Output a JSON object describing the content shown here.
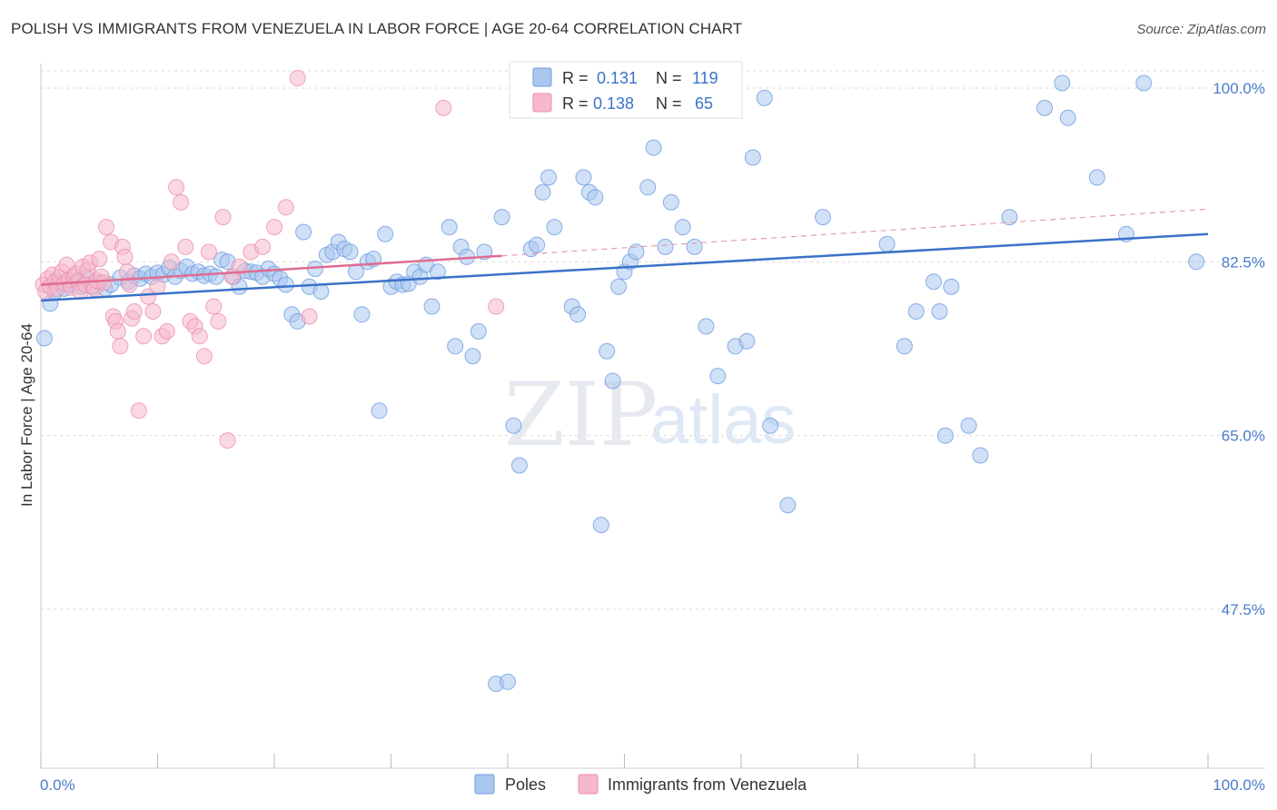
{
  "header": {
    "title": "POLISH VS IMMIGRANTS FROM VENEZUELA IN LABOR FORCE | AGE 20-64 CORRELATION CHART",
    "source": "Source: ZipAtlas.com"
  },
  "watermark": {
    "zip": "ZIP",
    "atlas": "atlas"
  },
  "stats": {
    "r_label": "R =",
    "n_label": "N =",
    "rows": [
      {
        "r": "0.131",
        "n": "119",
        "color": "#a9c7ee"
      },
      {
        "r": "0.138",
        "n": "65",
        "color": "#f6b8cb"
      }
    ]
  },
  "legend": {
    "items": [
      {
        "label": "Poles",
        "color": "#a9c7ee"
      },
      {
        "label": "Immigrants from Venezuela",
        "color": "#f6b8cb"
      }
    ]
  },
  "chart_data": {
    "type": "scatter",
    "title": "POLISH VS IMMIGRANTS FROM VENEZUELA IN LABOR FORCE | AGE 20-64 CORRELATION CHART",
    "ylabel": "In Labor Force | Age 20-64",
    "xlabel": "",
    "x_tick_labels": [
      "0.0%",
      "100.0%"
    ],
    "y_tick_labels": [
      "100.0%",
      "82.5%",
      "65.0%",
      "47.5%"
    ],
    "y_ticks": [
      100,
      82.5,
      65,
      47.5
    ],
    "xlim": [
      0,
      100
    ],
    "ylim": [
      28,
      102.5
    ],
    "grid": true,
    "legend_position": "bottom-center",
    "series": [
      {
        "name": "Poles",
        "color": "#6d9ee0",
        "fill": "#a9c7ee",
        "trend": [
          [
            0,
            78.6
          ],
          [
            100,
            85.3
          ]
        ],
        "points": [
          [
            0.3,
            74.8
          ],
          [
            0.8,
            78.3
          ],
          [
            1.2,
            79.5
          ],
          [
            1.6,
            80.5
          ],
          [
            2.0,
            79.8
          ],
          [
            2.5,
            80.2
          ],
          [
            3.0,
            80.6
          ],
          [
            3.5,
            80.0
          ],
          [
            4.0,
            80.8
          ],
          [
            4.5,
            80.0
          ],
          [
            5.0,
            80.4
          ],
          [
            5.5,
            79.8
          ],
          [
            6.0,
            80.2
          ],
          [
            6.8,
            80.9
          ],
          [
            7.5,
            80.5
          ],
          [
            8.0,
            81.1
          ],
          [
            8.5,
            80.8
          ],
          [
            9.0,
            81.3
          ],
          [
            9.5,
            81.0
          ],
          [
            10.0,
            81.4
          ],
          [
            10.5,
            81.2
          ],
          [
            11.0,
            81.9
          ],
          [
            11.5,
            81.0
          ],
          [
            12.0,
            81.6
          ],
          [
            12.5,
            82.0
          ],
          [
            13.0,
            81.3
          ],
          [
            13.5,
            81.5
          ],
          [
            14.0,
            81.1
          ],
          [
            14.5,
            81.3
          ],
          [
            15.0,
            81.0
          ],
          [
            15.5,
            82.7
          ],
          [
            16.0,
            82.5
          ],
          [
            16.5,
            81.0
          ],
          [
            17.0,
            80.0
          ],
          [
            17.5,
            81.6
          ],
          [
            18.0,
            81.5
          ],
          [
            18.5,
            81.4
          ],
          [
            19.0,
            81.0
          ],
          [
            19.5,
            81.8
          ],
          [
            20.0,
            81.3
          ],
          [
            20.5,
            80.8
          ],
          [
            21.0,
            80.2
          ],
          [
            21.5,
            77.2
          ],
          [
            22.0,
            76.5
          ],
          [
            22.5,
            85.5
          ],
          [
            23.0,
            80.0
          ],
          [
            23.5,
            81.8
          ],
          [
            24.0,
            79.5
          ],
          [
            24.5,
            83.2
          ],
          [
            25.0,
            83.5
          ],
          [
            25.5,
            84.5
          ],
          [
            26.0,
            83.8
          ],
          [
            26.5,
            83.5
          ],
          [
            27.0,
            81.5
          ],
          [
            27.5,
            77.2
          ],
          [
            28.0,
            82.5
          ],
          [
            28.5,
            82.8
          ],
          [
            29.0,
            67.5
          ],
          [
            29.5,
            85.3
          ],
          [
            30.0,
            80.0
          ],
          [
            30.5,
            80.5
          ],
          [
            31.0,
            80.2
          ],
          [
            31.5,
            80.3
          ],
          [
            32.0,
            81.5
          ],
          [
            32.5,
            81.0
          ],
          [
            33.0,
            82.2
          ],
          [
            33.5,
            78.0
          ],
          [
            34.0,
            81.5
          ],
          [
            35.0,
            86.0
          ],
          [
            35.5,
            74.0
          ],
          [
            36.0,
            84.0
          ],
          [
            36.5,
            83.0
          ],
          [
            37.0,
            73.0
          ],
          [
            37.5,
            75.5
          ],
          [
            38.0,
            83.5
          ],
          [
            39.0,
            40.0
          ],
          [
            39.5,
            87.0
          ],
          [
            40.0,
            40.2
          ],
          [
            40.5,
            66.0
          ],
          [
            41.0,
            62.0
          ],
          [
            42.0,
            83.8
          ],
          [
            42.5,
            84.2
          ],
          [
            43.0,
            89.5
          ],
          [
            43.5,
            91.0
          ],
          [
            44.0,
            86.0
          ],
          [
            45.5,
            78.0
          ],
          [
            46.0,
            77.2
          ],
          [
            46.5,
            91.0
          ],
          [
            47.0,
            89.5
          ],
          [
            47.5,
            89.0
          ],
          [
            48.0,
            56.0
          ],
          [
            48.5,
            73.5
          ],
          [
            49.0,
            70.5
          ],
          [
            49.5,
            80.0
          ],
          [
            50.0,
            81.5
          ],
          [
            50.5,
            82.5
          ],
          [
            51.0,
            83.5
          ],
          [
            52.0,
            90.0
          ],
          [
            52.5,
            94.0
          ],
          [
            53.5,
            84.0
          ],
          [
            54.0,
            88.5
          ],
          [
            55.0,
            86.0
          ],
          [
            56.0,
            84.0
          ],
          [
            57.0,
            76.0
          ],
          [
            58.0,
            71.0
          ],
          [
            59.5,
            74.0
          ],
          [
            60.5,
            74.5
          ],
          [
            61.0,
            93.0
          ],
          [
            62.0,
            99.0
          ],
          [
            62.5,
            66.0
          ],
          [
            64.0,
            58.0
          ],
          [
            67.0,
            87.0
          ],
          [
            72.5,
            84.3
          ],
          [
            74.0,
            74.0
          ],
          [
            75.0,
            77.5
          ],
          [
            76.5,
            80.5
          ],
          [
            77.0,
            77.5
          ],
          [
            77.5,
            65.0
          ],
          [
            78.0,
            80.0
          ],
          [
            79.5,
            66.0
          ],
          [
            80.5,
            63.0
          ],
          [
            83.0,
            87.0
          ],
          [
            86.0,
            98.0
          ],
          [
            87.5,
            100.5
          ],
          [
            88.0,
            97.0
          ],
          [
            90.5,
            91.0
          ],
          [
            93.0,
            85.3
          ],
          [
            94.5,
            100.5
          ],
          [
            99.0,
            82.5
          ]
        ]
      },
      {
        "name": "Immigrants from Venezuela",
        "color": "#ee8fae",
        "fill": "#f6b8cb",
        "trend": [
          [
            0,
            80.2
          ],
          [
            39.5,
            83.1
          ]
        ],
        "trend_extension": [
          [
            39.5,
            83.1
          ],
          [
            100,
            87.8
          ]
        ],
        "points": [
          [
            0.2,
            80.2
          ],
          [
            0.4,
            79.5
          ],
          [
            0.6,
            80.8
          ],
          [
            0.8,
            80.0
          ],
          [
            1.0,
            81.2
          ],
          [
            1.2,
            80.5
          ],
          [
            1.4,
            79.8
          ],
          [
            1.6,
            80.9
          ],
          [
            1.8,
            81.5
          ],
          [
            2.0,
            80.3
          ],
          [
            2.2,
            82.2
          ],
          [
            2.4,
            80.7
          ],
          [
            2.6,
            79.9
          ],
          [
            2.8,
            81.0
          ],
          [
            3.0,
            81.3
          ],
          [
            3.2,
            80.5
          ],
          [
            3.4,
            79.5
          ],
          [
            3.6,
            82.0
          ],
          [
            3.8,
            80.2
          ],
          [
            4.0,
            81.7
          ],
          [
            4.2,
            82.4
          ],
          [
            4.4,
            80.1
          ],
          [
            4.6,
            79.8
          ],
          [
            4.8,
            80.6
          ],
          [
            5.0,
            82.8
          ],
          [
            5.2,
            81.0
          ],
          [
            5.4,
            80.4
          ],
          [
            5.6,
            86.0
          ],
          [
            6.0,
            84.5
          ],
          [
            6.2,
            77.0
          ],
          [
            6.4,
            76.5
          ],
          [
            6.6,
            75.5
          ],
          [
            6.8,
            74.0
          ],
          [
            7.0,
            84.0
          ],
          [
            7.2,
            83.0
          ],
          [
            7.4,
            81.5
          ],
          [
            7.6,
            80.2
          ],
          [
            7.8,
            76.8
          ],
          [
            8.0,
            77.5
          ],
          [
            8.4,
            67.5
          ],
          [
            8.8,
            75.0
          ],
          [
            9.2,
            79.0
          ],
          [
            9.6,
            77.5
          ],
          [
            10.0,
            80.0
          ],
          [
            10.4,
            75.0
          ],
          [
            10.8,
            75.5
          ],
          [
            11.2,
            82.5
          ],
          [
            11.6,
            90.0
          ],
          [
            12.0,
            88.5
          ],
          [
            12.4,
            84.0
          ],
          [
            12.8,
            76.5
          ],
          [
            13.2,
            76.0
          ],
          [
            13.6,
            75.0
          ],
          [
            14.0,
            73.0
          ],
          [
            14.4,
            83.5
          ],
          [
            14.8,
            78.0
          ],
          [
            15.2,
            76.5
          ],
          [
            15.6,
            87.0
          ],
          [
            16.0,
            64.5
          ],
          [
            16.4,
            81.0
          ],
          [
            17.0,
            82.0
          ],
          [
            18.0,
            83.5
          ],
          [
            19.0,
            84.0
          ],
          [
            20.0,
            86.0
          ],
          [
            21.0,
            88.0
          ],
          [
            22.0,
            101.0
          ],
          [
            23.0,
            77.0
          ],
          [
            34.5,
            98.0
          ],
          [
            39.0,
            78.0
          ]
        ]
      }
    ]
  }
}
